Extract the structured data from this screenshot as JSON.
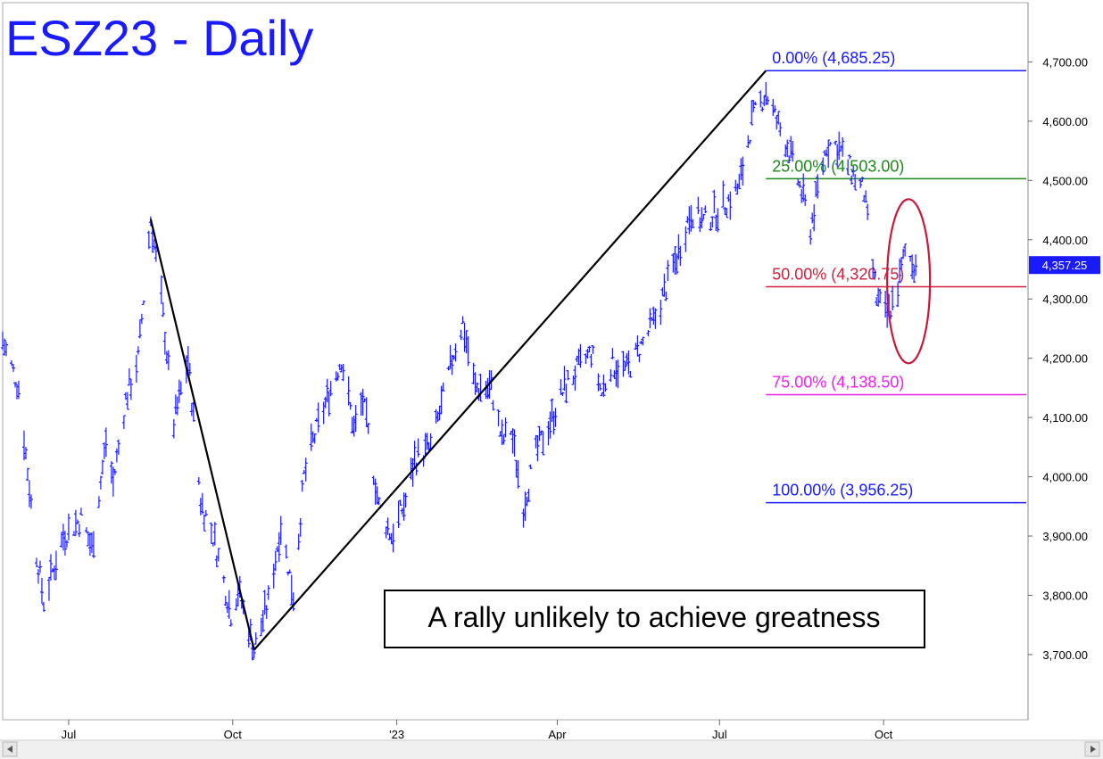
{
  "chart_data": {
    "type": "bar",
    "title": "ESZ23 - Daily",
    "annotation": "A rally unlikely to achieve greatness",
    "x_axis": {
      "labels": [
        "Jul",
        "Oct",
        "'23",
        "Apr",
        "Jul",
        "Oct"
      ],
      "dates": [
        "2022-07-01",
        "2022-10-01",
        "2023-01-01",
        "2023-04-01",
        "2023-07-01",
        "2023-10-01"
      ]
    },
    "x_range": [
      "2022-05-25",
      "2023-12-20"
    ],
    "y_axis": {
      "ticks": [
        "4,700.00",
        "4,600.00",
        "4,500.00",
        "4,400.00",
        "4,300.00",
        "4,200.00",
        "4,100.00",
        "4,000.00",
        "3,900.00",
        "3,800.00",
        "3,700.00"
      ],
      "tick_values": [
        4700,
        4600,
        4500,
        4400,
        4300,
        4200,
        4100,
        4000,
        3900,
        3800,
        3700
      ],
      "range": [
        3590,
        4800
      ],
      "position": "right"
    },
    "last_price": {
      "label": "4,357.25",
      "value": 4357.25,
      "color": "#1a1aff"
    },
    "fib_levels": [
      {
        "label": "0.00% (4,685.25)",
        "value": 4685.25,
        "color": "#1a1aff"
      },
      {
        "label": "25.00% (4,503.00)",
        "value": 4503.0,
        "color": "#1a8a1a"
      },
      {
        "label": "50.00% (4,320.75)",
        "value": 4320.75,
        "color": "#d21f3c"
      },
      {
        "label": "75.00% (4,138.50)",
        "value": 4138.5,
        "color": "#ee1fee"
      },
      {
        "label": "100.00% (3,956.25)",
        "value": 3956.25,
        "color": "#1a1aff"
      }
    ],
    "trendlines": [
      {
        "from": [
          "2022-08-16",
          4435
        ],
        "to": [
          "2022-10-13",
          3708
        ]
      },
      {
        "from": [
          "2022-10-13",
          3708
        ],
        "to": [
          "2023-07-27",
          4685.25
        ]
      }
    ],
    "highlight_ellipse": {
      "center": [
        "2023-10-15",
        4330
      ],
      "color": "#c8193c"
    },
    "series": [
      {
        "color": "#1a1aff",
        "price_path": [
          [
            "2022-05-25",
            4230
          ],
          [
            "2022-06-03",
            4150
          ],
          [
            "2022-06-13",
            3870
          ],
          [
            "2022-06-17",
            3790
          ],
          [
            "2022-06-28",
            3900
          ],
          [
            "2022-07-08",
            3930
          ],
          [
            "2022-07-14",
            3880
          ],
          [
            "2022-07-22",
            4060
          ],
          [
            "2022-07-26",
            3990
          ],
          [
            "2022-08-02",
            4130
          ],
          [
            "2022-08-09",
            4200
          ],
          [
            "2022-08-16",
            4435
          ],
          [
            "2022-08-22",
            4300
          ],
          [
            "2022-08-29",
            4090
          ],
          [
            "2022-09-06",
            4200
          ],
          [
            "2022-09-13",
            3960
          ],
          [
            "2022-09-21",
            3890
          ],
          [
            "2022-09-30",
            3770
          ],
          [
            "2022-10-04",
            3810
          ],
          [
            "2022-10-13",
            3708
          ],
          [
            "2022-10-21",
            3790
          ],
          [
            "2022-10-28",
            3920
          ],
          [
            "2022-11-04",
            3800
          ],
          [
            "2022-11-10",
            4000
          ],
          [
            "2022-11-15",
            4060
          ],
          [
            "2022-11-25",
            4150
          ],
          [
            "2022-12-01",
            4200
          ],
          [
            "2022-12-08",
            4080
          ],
          [
            "2022-12-13",
            4130
          ],
          [
            "2022-12-22",
            3950
          ],
          [
            "2022-12-29",
            3900
          ],
          [
            "2023-01-06",
            3960
          ],
          [
            "2023-01-11",
            4030
          ],
          [
            "2023-01-20",
            4050
          ],
          [
            "2023-01-26",
            4120
          ],
          [
            "2023-02-02",
            4210
          ],
          [
            "2023-02-07",
            4260
          ],
          [
            "2023-02-14",
            4150
          ],
          [
            "2023-02-23",
            4150
          ],
          [
            "2023-03-01",
            4060
          ],
          [
            "2023-03-06",
            4080
          ],
          [
            "2023-03-13",
            3950
          ],
          [
            "2023-03-20",
            4040
          ],
          [
            "2023-03-29",
            4100
          ],
          [
            "2023-04-05",
            4150
          ],
          [
            "2023-04-12",
            4180
          ],
          [
            "2023-04-20",
            4210
          ],
          [
            "2023-04-26",
            4140
          ],
          [
            "2023-05-01",
            4190
          ],
          [
            "2023-05-10",
            4180
          ],
          [
            "2023-05-18",
            4220
          ],
          [
            "2023-05-25",
            4260
          ],
          [
            "2023-06-01",
            4320
          ],
          [
            "2023-06-08",
            4380
          ],
          [
            "2023-06-15",
            4450
          ],
          [
            "2023-06-22",
            4430
          ],
          [
            "2023-06-30",
            4450
          ],
          [
            "2023-07-07",
            4470
          ],
          [
            "2023-07-12",
            4490
          ],
          [
            "2023-07-19",
            4600
          ],
          [
            "2023-07-27",
            4650
          ],
          [
            "2023-08-02",
            4600
          ],
          [
            "2023-08-08",
            4560
          ],
          [
            "2023-08-16",
            4480
          ],
          [
            "2023-08-21",
            4420
          ],
          [
            "2023-08-30",
            4560
          ],
          [
            "2023-09-05",
            4560
          ],
          [
            "2023-09-12",
            4520
          ],
          [
            "2023-09-20",
            4480
          ],
          [
            "2023-09-27",
            4300
          ],
          [
            "2023-10-03",
            4270
          ],
          [
            "2023-10-09",
            4320
          ],
          [
            "2023-10-13",
            4380
          ],
          [
            "2023-10-19",
            4357.25
          ]
        ]
      }
    ]
  }
}
